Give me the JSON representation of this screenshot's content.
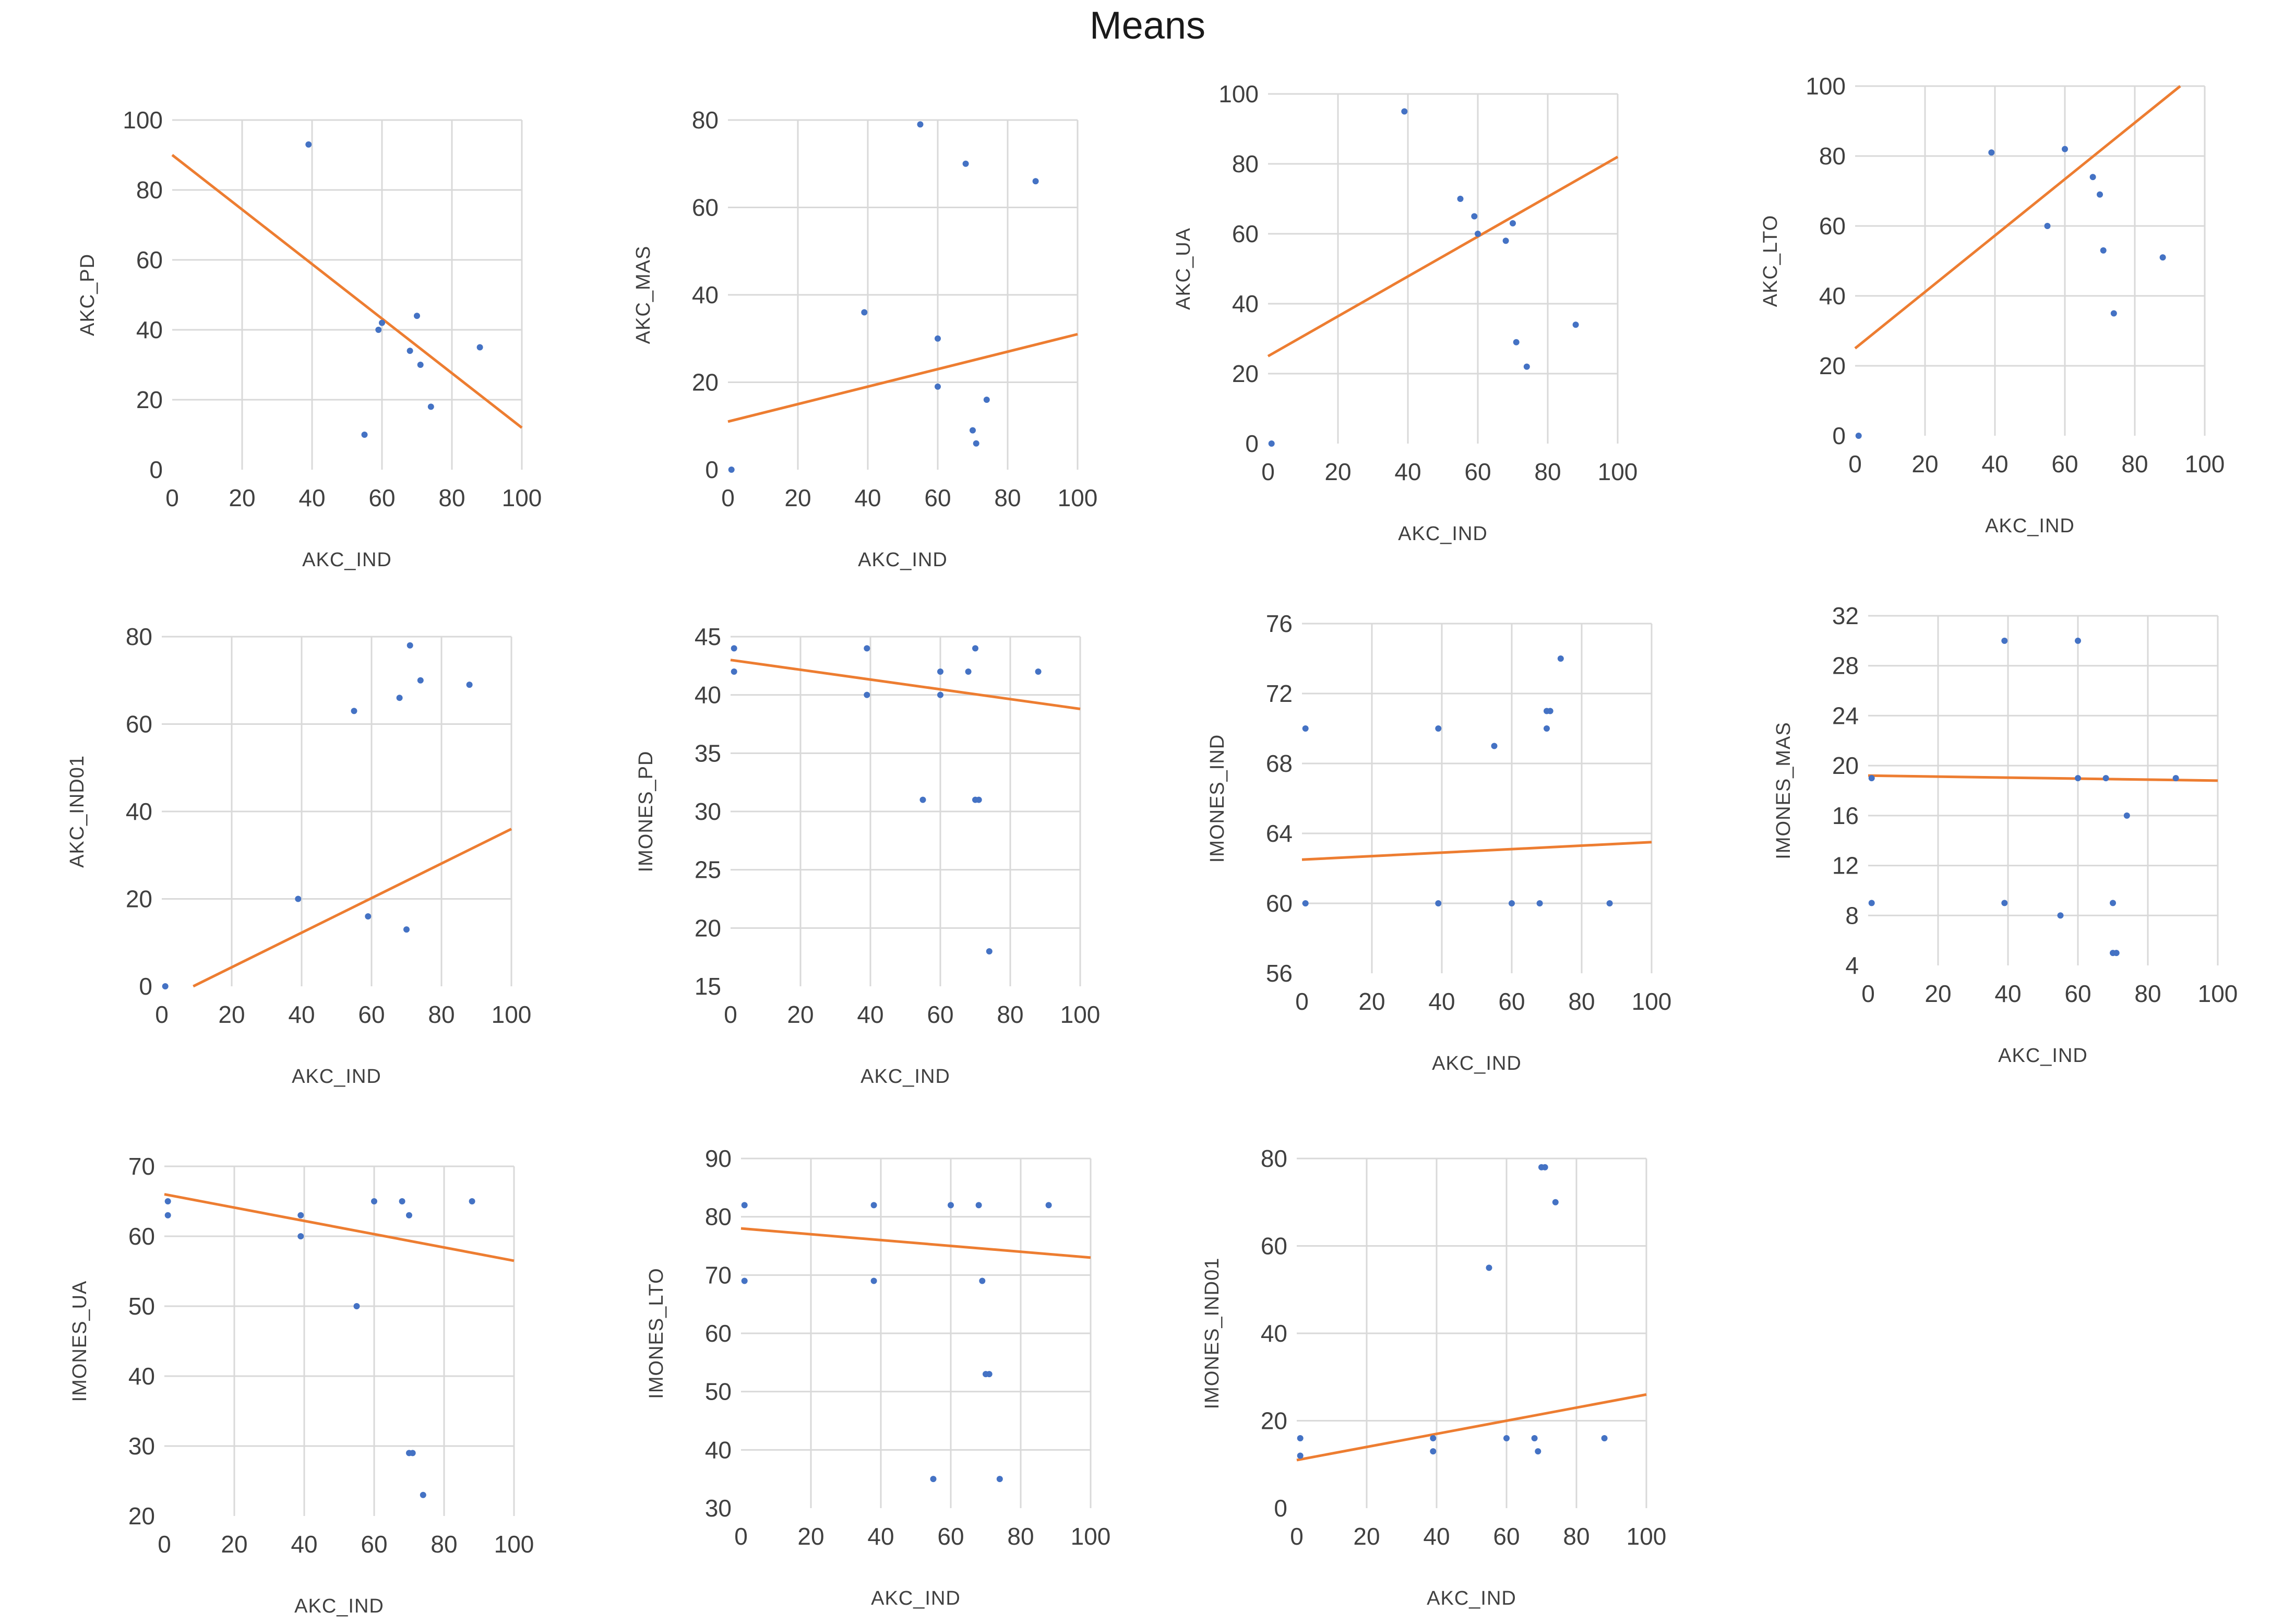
{
  "title": "Means",
  "colors": {
    "points": "#4472c4",
    "trendline": "#ed7d31",
    "grid": "#d9d9d9"
  },
  "chart_data": [
    {
      "type": "scatter",
      "xlabel": "AKC_IND",
      "ylabel": "AKC_PD",
      "xlim": [
        0,
        100
      ],
      "ylim": [
        0,
        100
      ],
      "xticks": [
        0,
        20,
        40,
        60,
        80,
        100
      ],
      "yticks": [
        0,
        20,
        40,
        60,
        80,
        100
      ],
      "points": [
        [
          39,
          93
        ],
        [
          55,
          10
        ],
        [
          59,
          40
        ],
        [
          60,
          42
        ],
        [
          68,
          34
        ],
        [
          70,
          44
        ],
        [
          71,
          30
        ],
        [
          74,
          18
        ],
        [
          88,
          35
        ]
      ],
      "trendline": [
        [
          0,
          90
        ],
        [
          100,
          12
        ]
      ],
      "grid": true
    },
    {
      "type": "scatter",
      "xlabel": "AKC_IND",
      "ylabel": "AKC_MAS",
      "xlim": [
        0,
        100
      ],
      "ylim": [
        0,
        80
      ],
      "xticks": [
        0,
        20,
        40,
        60,
        80,
        100
      ],
      "yticks": [
        0,
        20,
        40,
        60,
        80
      ],
      "points": [
        [
          1,
          0
        ],
        [
          39,
          36
        ],
        [
          55,
          79
        ],
        [
          60,
          30
        ],
        [
          60,
          19
        ],
        [
          68,
          70
        ],
        [
          70,
          9
        ],
        [
          71,
          6
        ],
        [
          74,
          16
        ],
        [
          88,
          66
        ]
      ],
      "trendline": [
        [
          0,
          11
        ],
        [
          100,
          31
        ]
      ],
      "grid": true
    },
    {
      "type": "scatter",
      "xlabel": "AKC_IND",
      "ylabel": "AKC_UA",
      "xlim": [
        0,
        100
      ],
      "ylim": [
        0,
        100
      ],
      "xticks": [
        0,
        20,
        40,
        60,
        80,
        100
      ],
      "yticks": [
        0,
        20,
        40,
        60,
        80,
        100
      ],
      "points": [
        [
          1,
          0
        ],
        [
          39,
          95
        ],
        [
          55,
          70
        ],
        [
          59,
          65
        ],
        [
          60,
          60
        ],
        [
          68,
          58
        ],
        [
          70,
          63
        ],
        [
          71,
          29
        ],
        [
          74,
          22
        ],
        [
          88,
          34
        ]
      ],
      "trendline": [
        [
          0,
          25
        ],
        [
          100,
          82
        ]
      ],
      "grid": true
    },
    {
      "type": "scatter",
      "xlabel": "AKC_IND",
      "ylabel": "AKC_LTO",
      "xlim": [
        0,
        100
      ],
      "ylim": [
        0,
        100
      ],
      "xticks": [
        0,
        20,
        40,
        60,
        80,
        100
      ],
      "yticks": [
        0,
        20,
        40,
        60,
        80,
        100
      ],
      "points": [
        [
          1,
          0
        ],
        [
          39,
          81
        ],
        [
          55,
          60
        ],
        [
          60,
          82
        ],
        [
          68,
          74
        ],
        [
          70,
          69
        ],
        [
          71,
          53
        ],
        [
          74,
          35
        ],
        [
          88,
          51
        ]
      ],
      "trendline": [
        [
          0,
          25
        ],
        [
          93,
          100
        ]
      ],
      "grid": true
    },
    {
      "type": "scatter",
      "xlabel": "AKC_IND",
      "ylabel": "AKC_IND01",
      "xlim": [
        0,
        100
      ],
      "ylim": [
        0,
        80
      ],
      "xticks": [
        0,
        20,
        40,
        60,
        80,
        100
      ],
      "yticks": [
        0,
        20,
        40,
        60,
        80
      ],
      "points": [
        [
          1,
          0
        ],
        [
          39,
          20
        ],
        [
          55,
          63
        ],
        [
          59,
          16
        ],
        [
          68,
          66
        ],
        [
          70,
          13
        ],
        [
          71,
          78
        ],
        [
          74,
          70
        ],
        [
          88,
          69
        ]
      ],
      "trendline": [
        [
          9,
          0
        ],
        [
          100,
          36
        ]
      ],
      "grid": true
    },
    {
      "type": "scatter",
      "xlabel": "AKC_IND",
      "ylabel": "IMONES_PD",
      "xlim": [
        0,
        100
      ],
      "ylim": [
        15,
        45
      ],
      "xticks": [
        0,
        20,
        40,
        60,
        80,
        100
      ],
      "yticks": [
        15,
        20,
        25,
        30,
        35,
        40,
        45
      ],
      "points": [
        [
          1,
          44
        ],
        [
          1,
          42
        ],
        [
          39,
          44
        ],
        [
          39,
          40
        ],
        [
          55,
          31
        ],
        [
          60,
          42
        ],
        [
          60,
          40
        ],
        [
          68,
          42
        ],
        [
          70,
          44
        ],
        [
          70,
          31
        ],
        [
          71,
          31
        ],
        [
          74,
          18
        ],
        [
          88,
          42
        ]
      ],
      "trendline": [
        [
          0,
          43
        ],
        [
          100,
          38.8
        ]
      ],
      "grid": true
    },
    {
      "type": "scatter",
      "xlabel": "AKC_IND",
      "ylabel": "IMONES_IND",
      "xlim": [
        0,
        100
      ],
      "ylim": [
        56,
        76
      ],
      "xticks": [
        0,
        20,
        40,
        60,
        80,
        100
      ],
      "yticks": [
        56,
        60,
        64,
        68,
        72,
        76
      ],
      "points": [
        [
          1,
          70
        ],
        [
          1,
          60
        ],
        [
          39,
          70
        ],
        [
          39,
          60
        ],
        [
          55,
          69
        ],
        [
          60,
          60
        ],
        [
          68,
          60
        ],
        [
          70,
          71
        ],
        [
          70,
          70
        ],
        [
          71,
          71
        ],
        [
          74,
          74
        ],
        [
          88,
          60
        ]
      ],
      "trendline": [
        [
          0,
          62.5
        ],
        [
          100,
          63.5
        ]
      ],
      "grid": true
    },
    {
      "type": "scatter",
      "xlabel": "AKC_IND",
      "ylabel": "IMONES_MAS",
      "xlim": [
        0,
        100
      ],
      "ylim": [
        4,
        32
      ],
      "xticks": [
        0,
        20,
        40,
        60,
        80,
        100
      ],
      "yticks": [
        4,
        8,
        12,
        16,
        20,
        24,
        28,
        32
      ],
      "points": [
        [
          1,
          19
        ],
        [
          1,
          9
        ],
        [
          39,
          30
        ],
        [
          39,
          9
        ],
        [
          55,
          8
        ],
        [
          60,
          30
        ],
        [
          60,
          19
        ],
        [
          68,
          19
        ],
        [
          70,
          9
        ],
        [
          70,
          5
        ],
        [
          71,
          5
        ],
        [
          74,
          16
        ],
        [
          88,
          19
        ]
      ],
      "trendline": [
        [
          0,
          19.2
        ],
        [
          100,
          18.8
        ]
      ],
      "grid": true
    },
    {
      "type": "scatter",
      "xlabel": "AKC_IND",
      "ylabel": "IMONES_UA",
      "xlim": [
        0,
        100
      ],
      "ylim": [
        20,
        70
      ],
      "xticks": [
        0,
        20,
        40,
        60,
        80,
        100
      ],
      "yticks": [
        20,
        30,
        40,
        50,
        60,
        70
      ],
      "points": [
        [
          1,
          65
        ],
        [
          1,
          63
        ],
        [
          39,
          63
        ],
        [
          39,
          60
        ],
        [
          55,
          50
        ],
        [
          60,
          65
        ],
        [
          68,
          65
        ],
        [
          70,
          63
        ],
        [
          70,
          29
        ],
        [
          71,
          29
        ],
        [
          74,
          23
        ],
        [
          88,
          65
        ]
      ],
      "trendline": [
        [
          0,
          66
        ],
        [
          100,
          56.5
        ]
      ],
      "grid": true
    },
    {
      "type": "scatter",
      "xlabel": "AKC_IND",
      "ylabel": "IMONES_LTO",
      "xlim": [
        0,
        100
      ],
      "ylim": [
        30,
        90
      ],
      "xticks": [
        0,
        20,
        40,
        60,
        80,
        100
      ],
      "yticks": [
        30,
        40,
        50,
        60,
        70,
        80,
        90
      ],
      "points": [
        [
          1,
          82
        ],
        [
          1,
          69
        ],
        [
          38,
          82
        ],
        [
          38,
          69
        ],
        [
          55,
          35
        ],
        [
          60,
          82
        ],
        [
          68,
          82
        ],
        [
          69,
          69
        ],
        [
          70,
          53
        ],
        [
          71,
          53
        ],
        [
          74,
          35
        ],
        [
          88,
          82
        ]
      ],
      "trendline": [
        [
          0,
          78
        ],
        [
          100,
          73
        ]
      ],
      "grid": true
    },
    {
      "type": "scatter",
      "xlabel": "AKC_IND",
      "ylabel": "IMONES_IND01",
      "xlim": [
        0,
        100
      ],
      "ylim": [
        0,
        80
      ],
      "xticks": [
        0,
        20,
        40,
        60,
        80,
        100
      ],
      "yticks": [
        0,
        20,
        40,
        60,
        80
      ],
      "points": [
        [
          1,
          16
        ],
        [
          1,
          12
        ],
        [
          39,
          16
        ],
        [
          39,
          13
        ],
        [
          55,
          55
        ],
        [
          60,
          16
        ],
        [
          68,
          16
        ],
        [
          69,
          13
        ],
        [
          70,
          78
        ],
        [
          71,
          78
        ],
        [
          74,
          70
        ],
        [
          88,
          16
        ]
      ],
      "trendline": [
        [
          0,
          11
        ],
        [
          100,
          26
        ]
      ],
      "grid": true
    }
  ]
}
